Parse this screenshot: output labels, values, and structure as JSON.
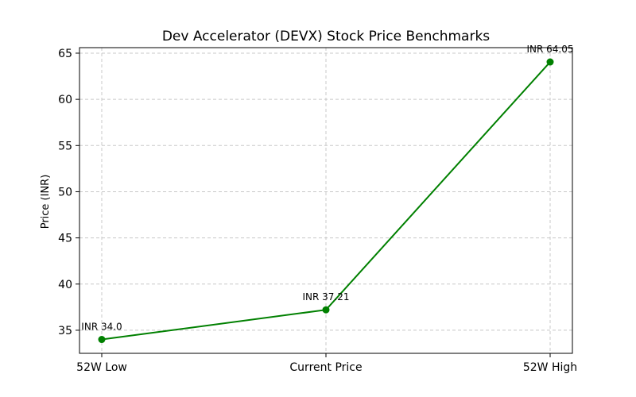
{
  "chart_data": {
    "type": "line",
    "title": "Dev Accelerator (DEVX) Stock Price Benchmarks",
    "xlabel": "",
    "ylabel": "Price (INR)",
    "categories": [
      "52W Low",
      "Current Price",
      "52W High"
    ],
    "series": [
      {
        "name": "Price",
        "values": [
          34.0,
          37.21,
          64.05
        ],
        "color": "#008000",
        "marker": "circle"
      }
    ],
    "data_labels": [
      "INR 34.0",
      "INR 37.21",
      "INR 64.05"
    ],
    "ylim": [
      32.5,
      65.6
    ],
    "yticks": [
      35,
      40,
      45,
      50,
      55,
      60,
      65
    ],
    "grid": true,
    "grid_style": "dashed",
    "legend": "none"
  }
}
